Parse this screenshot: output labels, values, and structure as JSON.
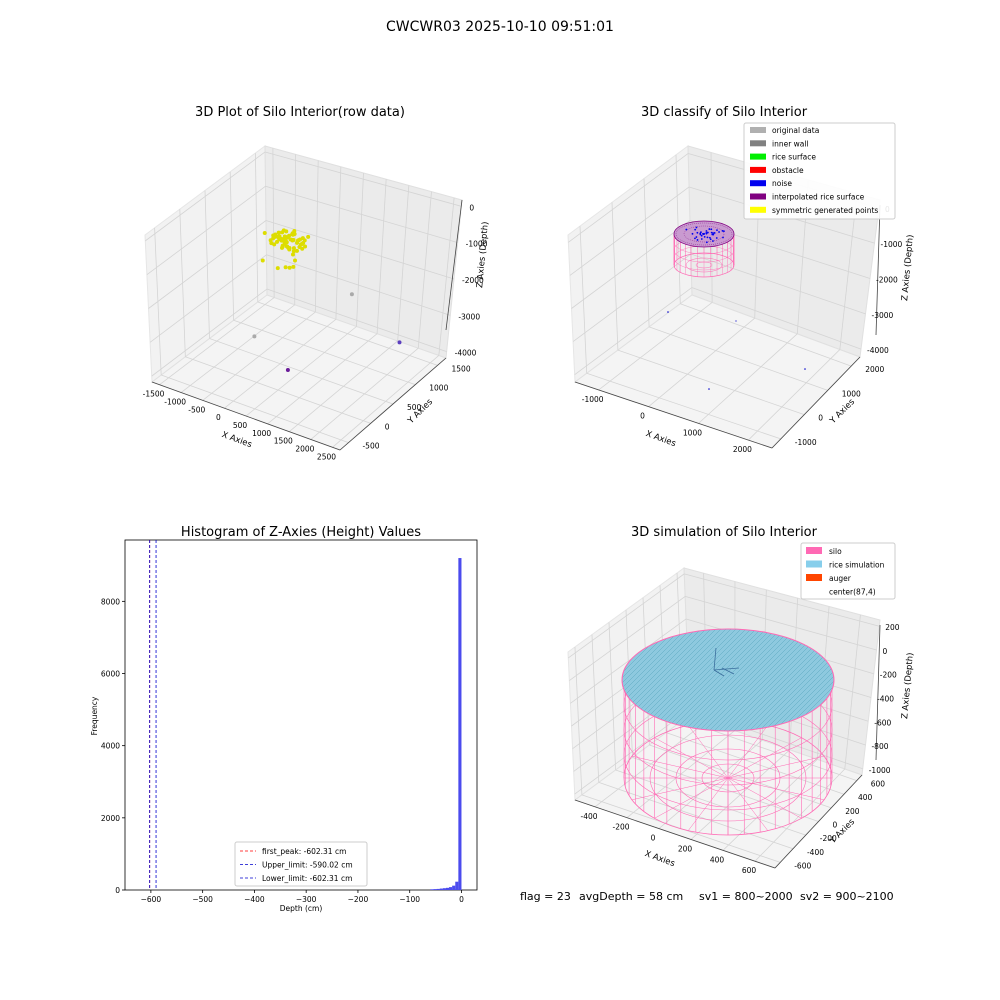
{
  "suptitle": "CWCWR03 2025-10-10 09:51:01",
  "footer": {
    "flag": "flag = 23",
    "avgDepth": "avgDepth = 58 cm",
    "sv1": "sv1 = 800~2000",
    "sv2": "sv2 = 900~2100"
  },
  "chart_data": [
    {
      "type": "scatter",
      "title": "3D Plot of Silo Interior(row data)",
      "xlabel": "X Axies",
      "ylabel": "Y Axies",
      "zlabel": "Z Axies (Depth)",
      "xticks": [
        "-1500",
        "-1000",
        "-500",
        "0",
        "500",
        "1000",
        "1500",
        "2000",
        "2500"
      ],
      "yticks": [
        "-500",
        "0",
        "500",
        "1000",
        "1500"
      ],
      "zticks": [
        "0",
        "-1000",
        "-2000",
        "-3000",
        "-4000"
      ],
      "xlim": [
        -1500,
        2500
      ],
      "ylim": [
        -700,
        1800
      ],
      "zlim": [
        -4500,
        300
      ],
      "series": [
        {
          "color": "#dddd00",
          "cluster": {
            "x": -150,
            "y": 900,
            "z": -1000,
            "count": 70
          }
        },
        {
          "color": "#aaaaaa",
          "points": [
            [
              600,
              1500,
              -3000
            ],
            [
              -300,
              300,
              -3500
            ]
          ]
        },
        {
          "color": "#6a1b9a",
          "points": [
            [
              1000,
              -300,
              -3200
            ]
          ]
        },
        {
          "color": "#5c3fbf",
          "points": [
            [
              2200,
              900,
              -3000
            ]
          ]
        }
      ]
    },
    {
      "type": "scatter",
      "title": "3D classify of Silo Interior",
      "xlabel": "X Axies",
      "ylabel": "Y Axies",
      "zlabel": "Z Axies (Depth)",
      "xticks": [
        "-1000",
        "0",
        "1000",
        "2000"
      ],
      "yticks": [
        "-1000",
        "0",
        "1000",
        "2000"
      ],
      "zticks": [
        "0",
        "-1000",
        "-2000",
        "-3000",
        "-4000"
      ],
      "legend_position": "top-right",
      "legend": [
        {
          "label": "original data",
          "color": "#b0b0b0"
        },
        {
          "label": "inner wall",
          "color": "#808080"
        },
        {
          "label": "rice surface",
          "color": "#00ee00"
        },
        {
          "label": "obstacle",
          "color": "#ff0000"
        },
        {
          "label": "noise",
          "color": "#0000ee"
        },
        {
          "label": "interpolated rice surface",
          "color": "#800080"
        },
        {
          "label": "symmetric generated points",
          "color": "#ffff00"
        }
      ]
    },
    {
      "type": "bar",
      "title": "Histogram of Z-Axies (Height) Values",
      "xlabel": "Depth (cm)",
      "ylabel": "Frequency",
      "xlim": [
        -650,
        30
      ],
      "ylim": [
        0,
        9700
      ],
      "xticks": [
        -600,
        -500,
        -400,
        -300,
        -200,
        -100,
        0
      ],
      "yticks": [
        0,
        2000,
        4000,
        6000,
        8000
      ],
      "bar_color": "#4b4bee",
      "bin_width": 6,
      "bins": [
        {
          "x0": -60,
          "value": 20
        },
        {
          "x0": -54,
          "value": 25
        },
        {
          "x0": -48,
          "value": 30
        },
        {
          "x0": -42,
          "value": 40
        },
        {
          "x0": -36,
          "value": 50
        },
        {
          "x0": -30,
          "value": 60
        },
        {
          "x0": -24,
          "value": 80
        },
        {
          "x0": -18,
          "value": 120
        },
        {
          "x0": -12,
          "value": 230
        },
        {
          "x0": -6,
          "value": 9200
        }
      ],
      "lines": [
        {
          "x": -602.31,
          "color": "#ff0000",
          "dash": "3,2",
          "label": "first_peak: -602.31 cm"
        },
        {
          "x": -590.02,
          "color": "#0000cc",
          "dash": "3,2",
          "label": "Upper_limit: -590.02 cm"
        },
        {
          "x": -602.31,
          "color": "#0000cc",
          "dash": "3,2",
          "label": "Lower_limit: -602.31 cm"
        }
      ],
      "legend_position": "bottom-center"
    },
    {
      "type": "area",
      "title": "3D simulation of Silo Interior",
      "xlabel": "X Axies",
      "ylabel": "Y Axies",
      "zlabel": "Z Axies (Depth)",
      "xticks": [
        "-400",
        "-200",
        "0",
        "200",
        "400",
        "600"
      ],
      "yticks": [
        "-600",
        "-400",
        "-200",
        "0",
        "200",
        "400",
        "600"
      ],
      "zticks": [
        "200",
        "0",
        "-200",
        "-400",
        "-600",
        "-800",
        "-1000"
      ],
      "legend_position": "top-right",
      "legend": [
        {
          "label": "silo",
          "color": "#ff69b4"
        },
        {
          "label": "rice simulation",
          "color": "#87ceeb"
        },
        {
          "label": "auger",
          "color": "#ff4500"
        },
        {
          "label": "center(87,4)",
          "color": ""
        }
      ]
    }
  ]
}
